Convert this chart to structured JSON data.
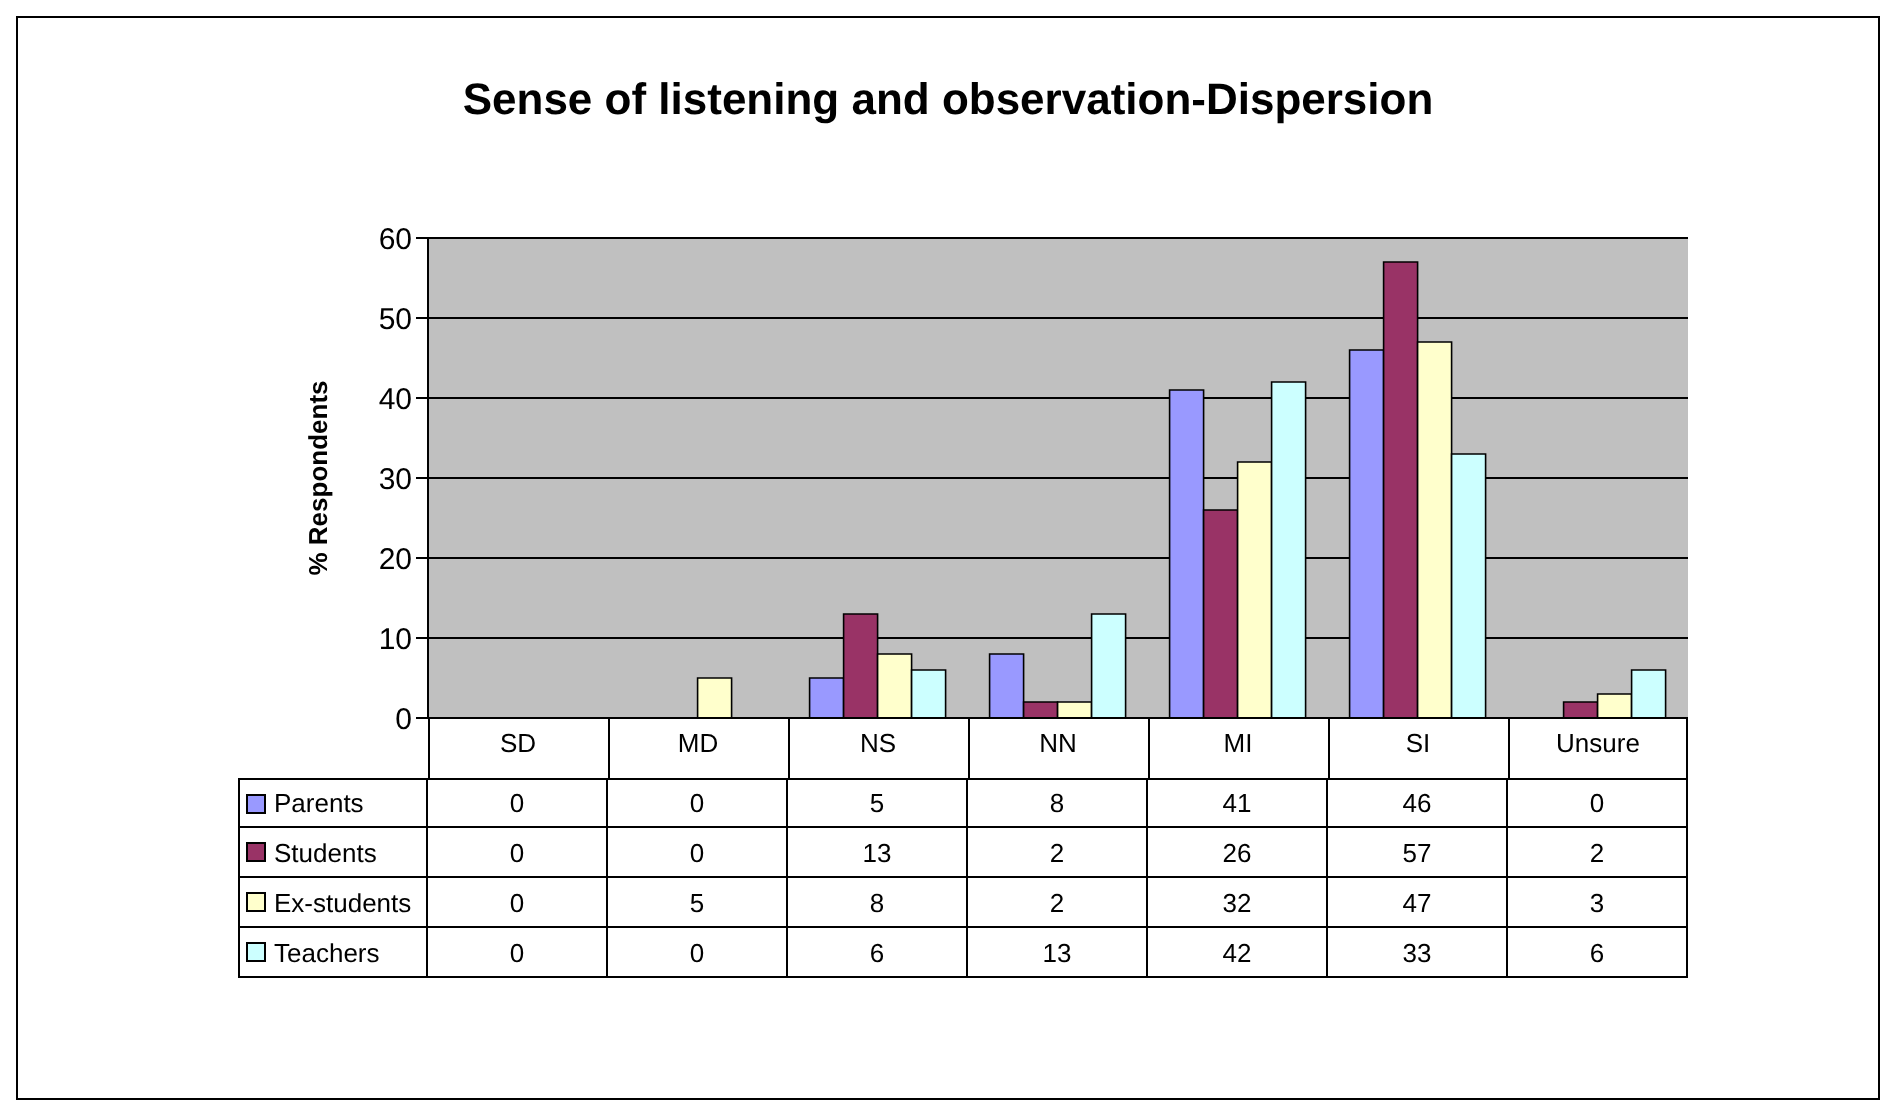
{
  "chart_data": {
    "type": "bar",
    "title": "Sense of listening and observation-Dispersion",
    "ylabel": "% Respondents",
    "categories": [
      "SD",
      "MD",
      "NS",
      "NN",
      "MI",
      "SI",
      "Unsure"
    ],
    "series": [
      {
        "name": "Parents",
        "color": "#9999ff",
        "values": [
          0,
          0,
          5,
          8,
          41,
          46,
          0
        ]
      },
      {
        "name": "Students",
        "color": "#993366",
        "values": [
          0,
          0,
          13,
          2,
          26,
          57,
          2
        ]
      },
      {
        "name": "Ex-students",
        "color": "#ffffcc",
        "values": [
          0,
          5,
          8,
          2,
          32,
          47,
          3
        ]
      },
      {
        "name": "Teachers",
        "color": "#ccffff",
        "values": [
          0,
          0,
          6,
          13,
          42,
          33,
          6
        ]
      }
    ],
    "ylim": [
      0,
      60
    ],
    "yticks": [
      0,
      10,
      20,
      30,
      40,
      50,
      60
    ],
    "grid": "y",
    "legend": "bottom",
    "data_labels": true
  }
}
